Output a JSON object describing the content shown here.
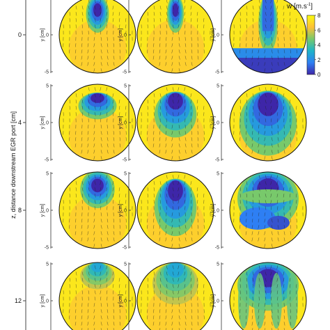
{
  "chart_data": {
    "type": "heatmap",
    "description_axis_z": "z, distance downstream EGR port [cm]",
    "axis_y_label": "y [cm]",
    "z_rows": [
      "0",
      "4",
      "8",
      "12"
    ],
    "y_ticks": [
      "5",
      "0",
      "-5"
    ],
    "colorbar": {
      "title_main": "w [m.s",
      "title_sup": "-1",
      "title_end": "]",
      "ticks": [
        "8",
        "6",
        "4",
        "2",
        "0"
      ],
      "range": [
        0,
        8
      ],
      "colors": [
        "#3e26a8",
        "#2e7ff3",
        "#1eb4c9",
        "#78c96b",
        "#ffc137",
        "#f9fb0e"
      ]
    },
    "columns": 3,
    "panels": [
      [
        {
          "jet_depth": 0.45,
          "jet_width": 0.3,
          "mode": "jet"
        },
        {
          "jet_depth": 0.45,
          "jet_width": 0.22,
          "mode": "jet"
        },
        {
          "jet_depth": 0.7,
          "jet_width": 0.25,
          "mode": "split"
        }
      ],
      [
        {
          "jet_depth": 0.35,
          "jet_width": 0.5,
          "mode": "blob"
        },
        {
          "jet_depth": 0.6,
          "jet_width": 0.55,
          "mode": "blob"
        },
        {
          "jet_depth": 0.85,
          "jet_width": 0.75,
          "mode": "drop"
        }
      ],
      [
        {
          "jet_depth": 0.45,
          "jet_width": 0.45,
          "mode": "jet"
        },
        {
          "jet_depth": 0.75,
          "jet_width": 0.55,
          "mode": "drop"
        },
        {
          "jet_depth": 0.7,
          "jet_width": 0.8,
          "mode": "mixed"
        }
      ],
      [
        {
          "jet_depth": 0.35,
          "jet_width": 0.45,
          "mode": "weak"
        },
        {
          "jet_depth": 0.55,
          "jet_width": 0.6,
          "mode": "weak"
        },
        {
          "jet_depth": 0.6,
          "jet_width": 0.8,
          "mode": "wave"
        }
      ]
    ]
  }
}
